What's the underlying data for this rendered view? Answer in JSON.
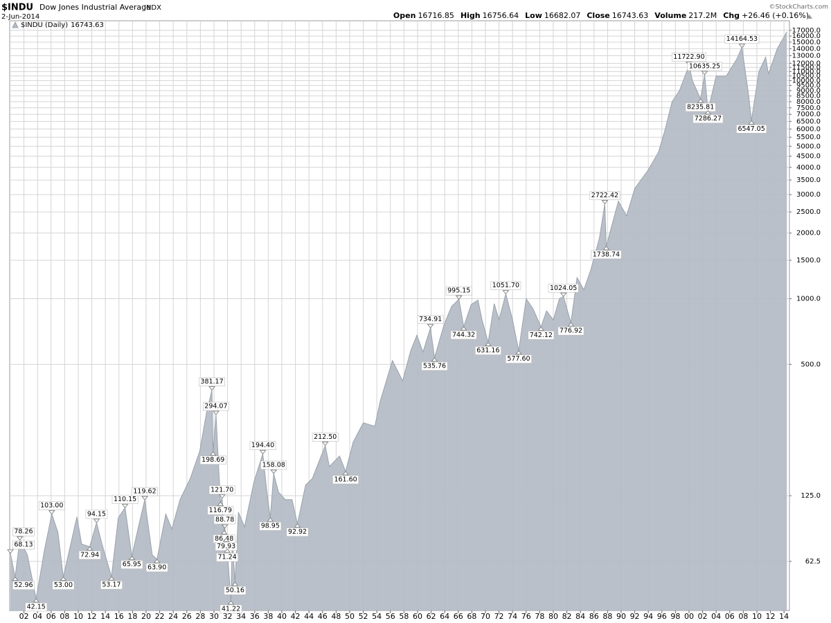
{
  "chart_data": {
    "type": "area",
    "symbol": "$INDU",
    "title": "Dow Jones Industrial Average",
    "exchange": "INDX",
    "date": "2-Jun-2014",
    "credit": "©StockCharts.com",
    "quote": [
      {
        "name": "Open",
        "value": 16716.85
      },
      {
        "name": "High",
        "value": 16756.64
      },
      {
        "name": "Low",
        "value": 16682.07
      },
      {
        "name": "Close",
        "value": 16743.63
      },
      {
        "name": "Volume",
        "value": "217.2M"
      },
      {
        "name": "Chg",
        "value": "+26.46 (+0.16%)"
      }
    ],
    "log_scale": true,
    "grid": true,
    "legend": "top-left",
    "xlim": [
      1899.9,
      2014.8
    ],
    "ylim": [
      37.2,
      18800
    ],
    "xticks": [
      {
        "value": 1902,
        "label": "02"
      },
      {
        "value": 1904,
        "label": "04"
      },
      {
        "value": 1906,
        "label": "06"
      },
      {
        "value": 1908,
        "label": "08"
      },
      {
        "value": 1910,
        "label": "10"
      },
      {
        "value": 1912,
        "label": "12"
      },
      {
        "value": 1914,
        "label": "14"
      },
      {
        "value": 1916,
        "label": "16"
      },
      {
        "value": 1918,
        "label": "18"
      },
      {
        "value": 1920,
        "label": "20"
      },
      {
        "value": 1922,
        "label": "22"
      },
      {
        "value": 1924,
        "label": "24"
      },
      {
        "value": 1926,
        "label": "26"
      },
      {
        "value": 1928,
        "label": "28"
      },
      {
        "value": 1930,
        "label": "30"
      },
      {
        "value": 1932,
        "label": "32"
      },
      {
        "value": 1934,
        "label": "34"
      },
      {
        "value": 1936,
        "label": "36"
      },
      {
        "value": 1938,
        "label": "38"
      },
      {
        "value": 1940,
        "label": "40"
      },
      {
        "value": 1942,
        "label": "42"
      },
      {
        "value": 1944,
        "label": "44"
      },
      {
        "value": 1946,
        "label": "46"
      },
      {
        "value": 1948,
        "label": "48"
      },
      {
        "value": 1950,
        "label": "50"
      },
      {
        "value": 1952,
        "label": "52"
      },
      {
        "value": 1954,
        "label": "54"
      },
      {
        "value": 1956,
        "label": "56"
      },
      {
        "value": 1958,
        "label": "58"
      },
      {
        "value": 1960,
        "label": "60"
      },
      {
        "value": 1962,
        "label": "62"
      },
      {
        "value": 1964,
        "label": "64"
      },
      {
        "value": 1966,
        "label": "66"
      },
      {
        "value": 1968,
        "label": "68"
      },
      {
        "value": 1970,
        "label": "70"
      },
      {
        "value": 1972,
        "label": "72"
      },
      {
        "value": 1974,
        "label": "74"
      },
      {
        "value": 1976,
        "label": "76"
      },
      {
        "value": 1978,
        "label": "78"
      },
      {
        "value": 1980,
        "label": "80"
      },
      {
        "value": 1982,
        "label": "82"
      },
      {
        "value": 1984,
        "label": "84"
      },
      {
        "value": 1986,
        "label": "86"
      },
      {
        "value": 1988,
        "label": "88"
      },
      {
        "value": 1990,
        "label": "90"
      },
      {
        "value": 1992,
        "label": "92"
      },
      {
        "value": 1994,
        "label": "94"
      },
      {
        "value": 1996,
        "label": "96"
      },
      {
        "value": 1998,
        "label": "98"
      },
      {
        "value": 2000,
        "label": "00"
      },
      {
        "value": 2002,
        "label": "02"
      },
      {
        "value": 2004,
        "label": "04"
      },
      {
        "value": 2006,
        "label": "06"
      },
      {
        "value": 2008,
        "label": "08"
      },
      {
        "value": 2010,
        "label": "10"
      },
      {
        "value": 2012,
        "label": "12"
      },
      {
        "value": 2014,
        "label": "14"
      }
    ],
    "yticks": [
      62.5,
      {
        "value": 125,
        "label": "125.0"
      },
      {
        "value": 500,
        "label": "500.0"
      },
      {
        "value": 1000,
        "label": "1000.0"
      },
      {
        "value": 1500,
        "label": "1500.0"
      },
      {
        "value": 2000,
        "label": "2000.0"
      },
      {
        "value": 2500,
        "label": "2500.0"
      },
      {
        "value": 3000,
        "label": "3000.0"
      },
      {
        "value": 3500,
        "label": "3500.0"
      },
      {
        "value": 4000,
        "label": "4000.0"
      },
      {
        "value": 4500,
        "label": "4500.0"
      },
      {
        "value": 5000,
        "label": "5000.0"
      },
      {
        "value": 5500,
        "label": "5500.0"
      },
      {
        "value": 6000,
        "label": "6000.0"
      },
      {
        "value": 6500,
        "label": "6500.0"
      },
      {
        "value": 7000,
        "label": "7000.0"
      },
      {
        "value": 7500,
        "label": "7500.0"
      },
      {
        "value": 8000,
        "label": "8000.0"
      },
      {
        "value": 8500,
        "label": "8500.0"
      },
      {
        "value": 9000,
        "label": "9000.0"
      },
      {
        "value": 9500,
        "label": "9500.0"
      },
      {
        "value": 10000,
        "label": "10000.0"
      },
      {
        "value": 10500,
        "label": "10500.0"
      },
      {
        "value": 11000,
        "label": "11000.0"
      },
      {
        "value": 11500,
        "label": "11500.0"
      },
      {
        "value": 12000,
        "label": "12000.0"
      },
      {
        "value": 13000,
        "label": "13000.0"
      },
      {
        "value": 14000,
        "label": "14000.0"
      },
      {
        "value": 15000,
        "label": "15000.0"
      },
      {
        "value": 16000,
        "label": "16000.0"
      },
      {
        "value": 17000,
        "label": "17000.0"
      }
    ],
    "series": [
      {
        "name": "$INDU (Daily)",
        "color": "#b4bbc4",
        "line_color": "#98a1ab",
        "x": [
          1900.0,
          1900.7,
          1901.4,
          1902.5,
          1903.8,
          1905.0,
          1906.1,
          1907.0,
          1907.8,
          1909.8,
          1910.5,
          1911.7,
          1912.7,
          1913.5,
          1914.9,
          1915.9,
          1916.9,
          1917.9,
          1918.8,
          1919.8,
          1920.9,
          1921.6,
          1922.9,
          1923.8,
          1925.0,
          1926.5,
          1927.9,
          1928.9,
          1929.7,
          1929.87,
          1930.3,
          1930.95,
          1931.2,
          1931.5,
          1931.6,
          1931.8,
          1931.95,
          1932.5,
          1932.7,
          1933.1,
          1933.6,
          1934.5,
          1935.9,
          1937.2,
          1937.8,
          1938.3,
          1938.8,
          1939.5,
          1940.5,
          1941.5,
          1942.3,
          1943.5,
          1944.5,
          1946.4,
          1947.0,
          1948.5,
          1949.4,
          1950.5,
          1952.0,
          1953.7,
          1954.5,
          1956.3,
          1957.8,
          1959.0,
          1959.9,
          1960.8,
          1961.9,
          1962.5,
          1963.9,
          1965.0,
          1966.1,
          1966.8,
          1967.9,
          1968.9,
          1969.5,
          1970.4,
          1971.3,
          1972.0,
          1973.0,
          1974.0,
          1974.9,
          1976.0,
          1977.0,
          1978.2,
          1979.0,
          1980.0,
          1980.9,
          1981.5,
          1982.6,
          1983.5,
          1984.5,
          1985.5,
          1986.8,
          1987.6,
          1987.8,
          1989.6,
          1990.8,
          1992.0,
          1994.0,
          1995.5,
          1996.5,
          1997.5,
          1998.6,
          2000.0,
          2000.5,
          2001.7,
          2002.3,
          2002.8,
          2004.0,
          2005.5,
          2007.0,
          2007.8,
          2008.8,
          2009.2,
          2010.3,
          2011.3,
          2011.7,
          2013.0,
          2014.42
        ],
        "values": [
          68.13,
          52.96,
          78.26,
          67,
          42.15,
          70,
          103.0,
          85,
          53.0,
          100,
          75,
          72.94,
          94.15,
          75,
          53.17,
          99,
          110.15,
          65.95,
          88,
          119.62,
          67,
          63.9,
          103,
          88,
          120,
          150,
          200,
          300,
          381.17,
          198.69,
          294.07,
          116.79,
          121.7,
          86.48,
          88.78,
          79.93,
          71.24,
          41.22,
          80,
          50.16,
          105,
          90,
          145,
          194.4,
          130,
          98.95,
          158.08,
          130,
          120,
          120,
          92.92,
          140,
          150,
          212.5,
          170,
          190,
          161.6,
          220,
          270,
          260,
          340,
          521,
          420,
          580,
          680,
          570,
          734.91,
          535.76,
          760,
          920,
          995.15,
          744.32,
          940,
          985,
          800,
          631.16,
          950,
          800,
          1051.7,
          800,
          577.6,
          1000,
          900,
          742.12,
          880,
          800,
          1000,
          1024.05,
          776.92,
          1250,
          1100,
          1350,
          1900,
          2722.42,
          1738.74,
          2800,
          2400,
          3200,
          3900,
          4700,
          6000,
          8000,
          9000,
          11722.9,
          10000,
          8235.81,
          10635.25,
          7286.27,
          10500,
          10500,
          12500,
          14164.53,
          8500,
          6547.05,
          11000,
          12800,
          10700,
          14000,
          16743.63
        ],
        "value_labels": [
          "68.13",
          "52.96",
          "78.26",
          null,
          "42.15",
          null,
          "103.00",
          null,
          "53.00",
          null,
          null,
          "72.94",
          "94.15",
          null,
          "53.17",
          null,
          "110.15",
          "65.95",
          null,
          "119.62",
          null,
          "63.90",
          null,
          null,
          null,
          null,
          null,
          null,
          "381.17",
          "198.69",
          "294.07",
          "116.79",
          "121.70",
          "86.48",
          "88.78",
          "79.93",
          "71.24",
          "41.22",
          null,
          "50.16",
          null,
          null,
          null,
          "194.40",
          null,
          "98.95",
          "158.08",
          null,
          null,
          null,
          "92.92",
          null,
          null,
          "212.50",
          null,
          null,
          "161.60",
          null,
          null,
          null,
          null,
          null,
          null,
          null,
          null,
          null,
          "734.91",
          "535.76",
          null,
          null,
          "995.15",
          "744.32",
          null,
          null,
          null,
          "631.16",
          null,
          null,
          "1051.70",
          null,
          "577.60",
          null,
          null,
          "742.12",
          null,
          null,
          null,
          "1024.05",
          "776.92",
          null,
          null,
          null,
          null,
          "2722.42",
          "1738.74",
          null,
          null,
          null,
          null,
          null,
          null,
          null,
          null,
          "11722.90",
          null,
          "8235.81",
          "10635.25",
          "7286.27",
          null,
          null,
          null,
          "14164.53",
          null,
          "6547.05",
          null,
          null,
          null,
          null,
          null
        ]
      }
    ]
  }
}
